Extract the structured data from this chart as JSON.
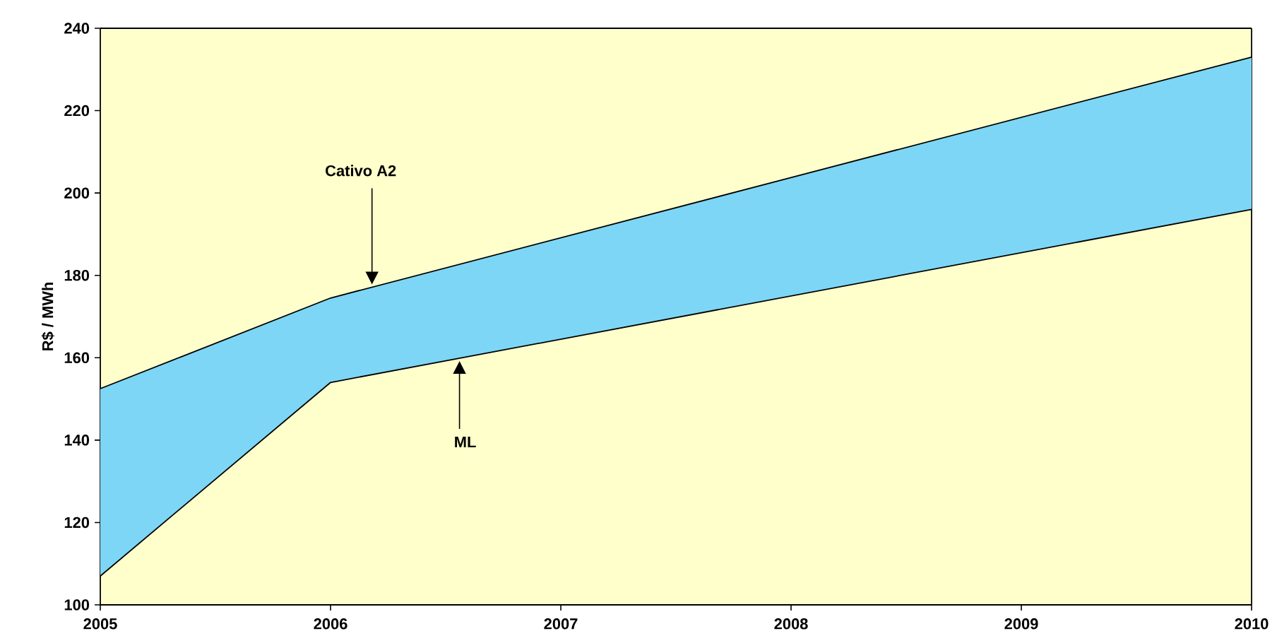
{
  "chart_data": {
    "type": "line",
    "ylabel": "R$ / MWh",
    "x": [
      2005,
      2006,
      2010
    ],
    "series": [
      {
        "color": "#000000",
        "values": [
          152.5,
          174.5,
          233
        ],
        "lower": [
          107,
          154,
          196
        ],
        "upper": [
          152.5,
          174.5,
          233
        ]
      },
      {
        "color": "#000000",
        "values": [
          107,
          154,
          196
        ]
      }
    ],
    "annotations": [
      "Cativo A2",
      "ML"
    ],
    "xlim": [
      2005,
      2010
    ],
    "xticks": [
      2005,
      2006,
      2007,
      2008,
      2009,
      2010
    ],
    "ylim": [
      100,
      240
    ],
    "yticks": [
      100,
      120,
      140,
      160,
      180,
      200,
      220,
      240
    ],
    "grid": false,
    "marker": "none",
    "line_style": "solid"
  }
}
